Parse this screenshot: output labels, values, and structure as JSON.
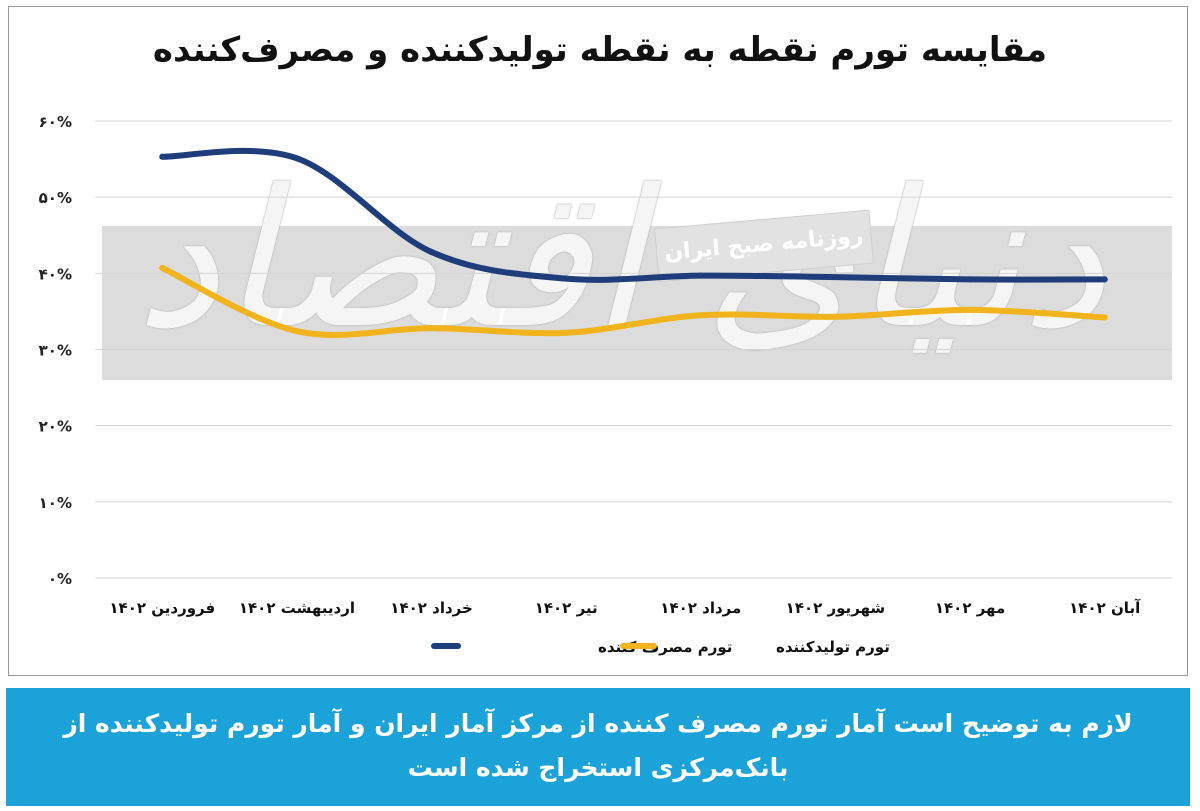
{
  "chart_data": {
    "type": "line",
    "title": "مقایسه تورم نقطه به نقطه تولیدکننده و مصرف‌کننده",
    "categories": [
      "فروردین ۱۴۰۲",
      "اردیبهشت ۱۴۰۲",
      "خرداد ۱۴۰۲",
      "تیر ۱۴۰۲",
      "مرداد ۱۴۰۲",
      "شهریور ۱۴۰۲",
      "مهر ۱۴۰۲",
      "آبان ۱۴۰۲"
    ],
    "y_ticks": [
      "۰%",
      "۱۰%",
      "۲۰%",
      "۳۰%",
      "۴۰%",
      "۵۰%",
      "۶۰%"
    ],
    "ylim": [
      0,
      60
    ],
    "grid": true,
    "legend_position": "bottom",
    "series": [
      {
        "name": "تورم مصرف کننده",
        "color": "#1f3d7a",
        "values": [
          55.3,
          55.1,
          42.8,
          39.3,
          39.7,
          39.5,
          39.2,
          39.2
        ]
      },
      {
        "name": "تورم تولیدکننده",
        "color": "#f2b41c",
        "values": [
          40.7,
          32.4,
          32.8,
          32.2,
          34.5,
          34.3,
          35.2,
          34.2
        ]
      }
    ]
  },
  "watermark": {
    "label": "روزنامه صبح ایران",
    "logo_text": "دنیای اقتصاد"
  },
  "footer": {
    "note": "لازم به توضیح است آمار تورم مصرف کننده از مرکز آمار ایران و آمار تورم تولیدکننده از بانک‌مرکزی استخراج شده است"
  }
}
